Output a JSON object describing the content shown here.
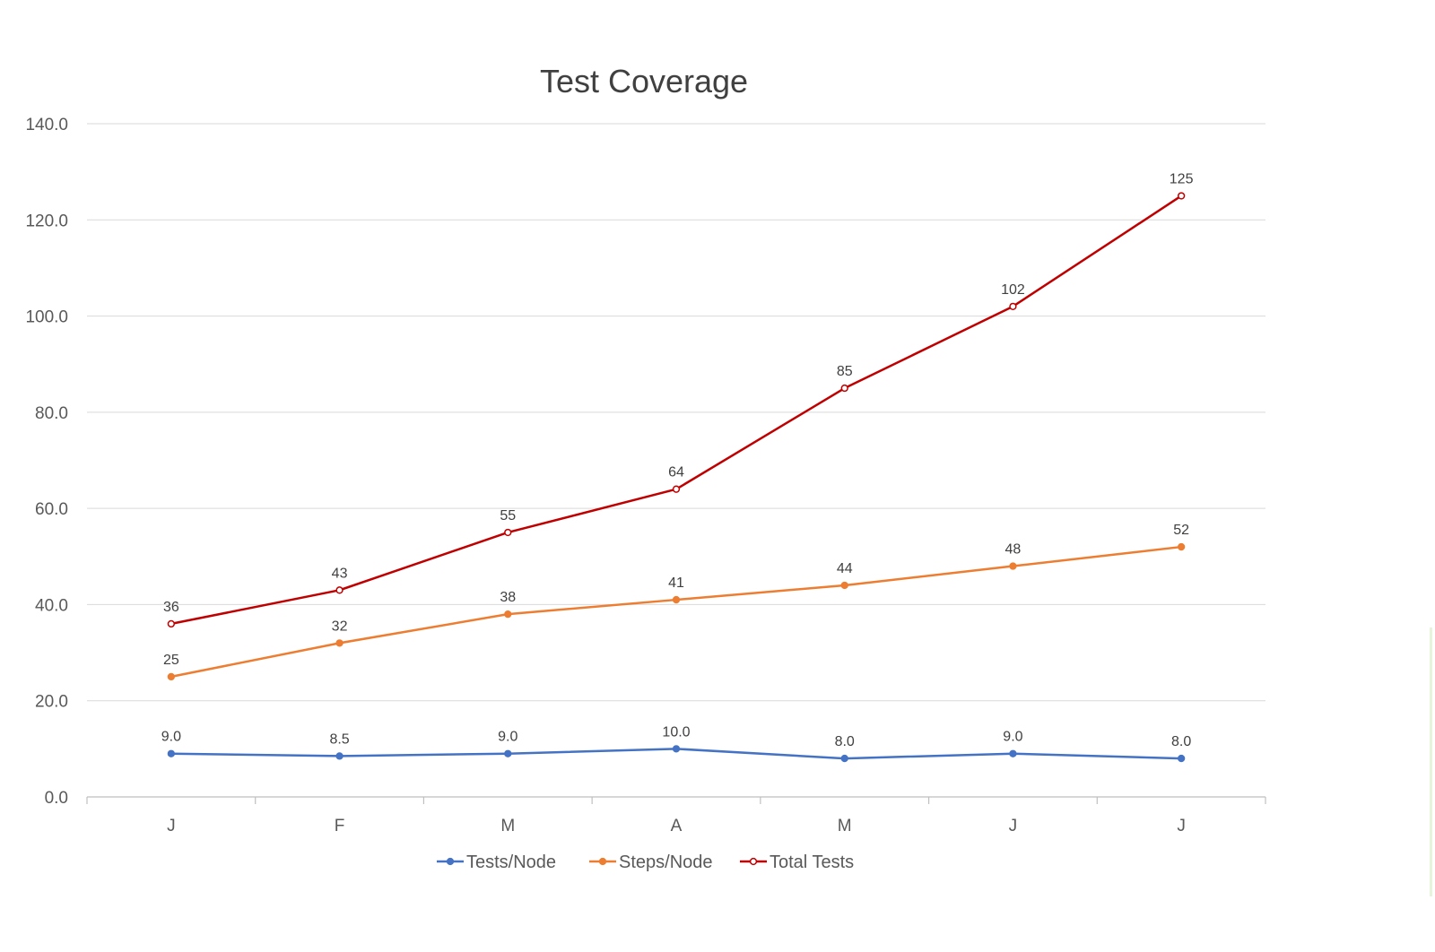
{
  "chart_data": {
    "type": "line",
    "title": "Test Coverage",
    "xlabel": "",
    "ylabel": "",
    "categories": [
      "J",
      "F",
      "M",
      "A",
      "M",
      "J",
      "J"
    ],
    "ylim": [
      0,
      140
    ],
    "yticks": [
      "0.0",
      "20.0",
      "40.0",
      "60.0",
      "80.0",
      "100.0",
      "120.0",
      "140.0"
    ],
    "grid": true,
    "legend_position": "bottom",
    "series": [
      {
        "name": "Tests/Node",
        "color": "#4472c4",
        "values": [
          9.0,
          8.5,
          9.0,
          10.0,
          8.0,
          9.0,
          8.0
        ],
        "labels": [
          "9.0",
          "8.5",
          "9.0",
          "10.0",
          "8.0",
          "9.0",
          "8.0"
        ]
      },
      {
        "name": "Steps/Node",
        "color": "#ed7d31",
        "values": [
          25,
          32,
          38,
          41,
          44,
          48,
          52
        ],
        "labels": [
          "25",
          "32",
          "38",
          "41",
          "44",
          "48",
          "52"
        ]
      },
      {
        "name": "Total Tests",
        "color": "#c00000",
        "values": [
          36,
          43,
          55,
          64,
          85,
          102,
          125
        ],
        "labels": [
          "36",
          "43",
          "55",
          "64",
          "85",
          "102",
          "125"
        ]
      }
    ]
  }
}
